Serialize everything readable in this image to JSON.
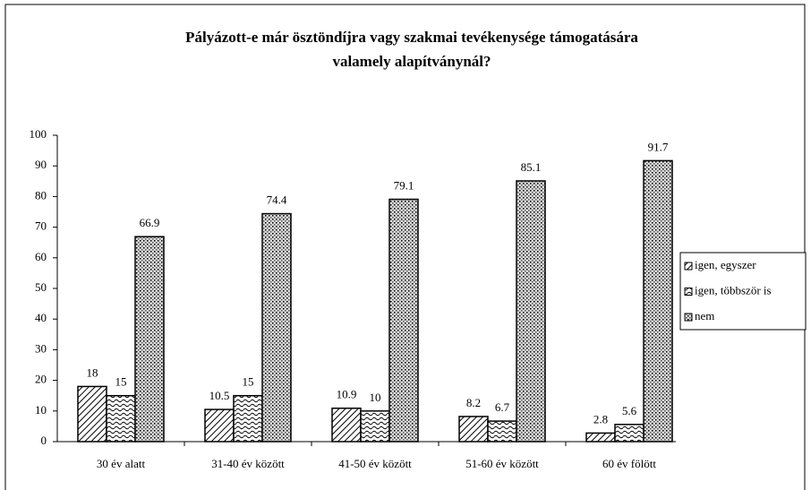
{
  "chart_data": {
    "type": "bar",
    "title": [
      "Pályázott-e már ösztöndíjra vagy szakmai tevékenysége támogatására",
      "valamely alapítványnál?"
    ],
    "categories": [
      "30 év alatt",
      "31-40 év között",
      "41-50 év között",
      "51-60 év között",
      "60 év fölött"
    ],
    "series": [
      {
        "name": "igen, egyszer",
        "color": "#000000",
        "values": [
          18,
          10.5,
          10.9,
          8.2,
          2.8
        ]
      },
      {
        "name": "igen, többször is",
        "color": "#000000",
        "values": [
          15,
          15,
          10,
          6.7,
          5.6
        ]
      },
      {
        "name": "nem",
        "color": "#000000",
        "values": [
          66.9,
          74.4,
          79.1,
          85.1,
          91.7
        ]
      }
    ],
    "ylim": [
      0,
      100
    ],
    "yticks": [
      0,
      10,
      20,
      30,
      40,
      50,
      60,
      70,
      80,
      90,
      100
    ],
    "legend": "right",
    "grid": false
  }
}
